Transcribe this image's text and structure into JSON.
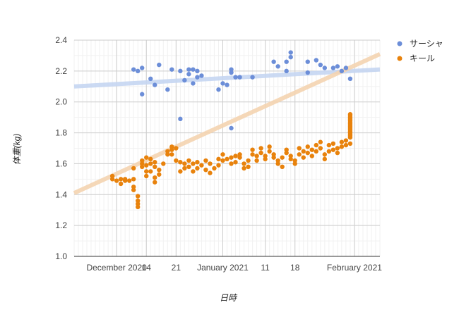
{
  "chart_data": {
    "type": "scatter",
    "xlabel": "日時",
    "ylabel": "体重(kg)",
    "ylim": [
      1.0,
      2.4
    ],
    "yticks": [
      "1.0",
      "1.2",
      "1.4",
      "1.6",
      "1.8",
      "2.0",
      "2.2",
      "2.4"
    ],
    "xlim": [
      "2020-11-27",
      "2021-02-07"
    ],
    "xticks": [
      {
        "date": "2020-12-07",
        "label": "December 2020"
      },
      {
        "date": "2020-12-14",
        "label": "14"
      },
      {
        "date": "2020-12-21",
        "label": "21"
      },
      {
        "date": "2021-01-01",
        "label": "January 2021"
      },
      {
        "date": "2021-01-11",
        "label": "11"
      },
      {
        "date": "2021-01-18",
        "label": "18"
      },
      {
        "date": "2021-02-01",
        "label": "February 2021"
      }
    ],
    "gridlines": true,
    "legend_position": "right",
    "series": [
      {
        "name": "サーシャ",
        "color": "#6c8ed8",
        "trendline": {
          "from": [
            "2020-11-27",
            2.1
          ],
          "to": [
            "2021-02-07",
            2.21
          ],
          "color": "#c6d6f2"
        },
        "points": [
          [
            "2020-12-11",
            2.21
          ],
          [
            "2020-12-12",
            2.2
          ],
          [
            "2020-12-13",
            2.22
          ],
          [
            "2020-12-13",
            2.05
          ],
          [
            "2020-12-15",
            2.15
          ],
          [
            "2020-12-16",
            2.11
          ],
          [
            "2020-12-17",
            2.24
          ],
          [
            "2020-12-19",
            2.08
          ],
          [
            "2020-12-20",
            2.21
          ],
          [
            "2020-12-22",
            2.2
          ],
          [
            "2020-12-22",
            1.89
          ],
          [
            "2020-12-23",
            2.14
          ],
          [
            "2020-12-24",
            2.21
          ],
          [
            "2020-12-24",
            2.18
          ],
          [
            "2020-12-25",
            2.12
          ],
          [
            "2020-12-25",
            2.21
          ],
          [
            "2020-12-26",
            2.16
          ],
          [
            "2020-12-26",
            2.2
          ],
          [
            "2020-12-27",
            2.17
          ],
          [
            "2020-12-31",
            2.08
          ],
          [
            "2021-01-01",
            2.12
          ],
          [
            "2021-01-02",
            2.11
          ],
          [
            "2021-01-03",
            2.21
          ],
          [
            "2021-01-03",
            2.19
          ],
          [
            "2021-01-03",
            1.83
          ],
          [
            "2021-01-04",
            2.16
          ],
          [
            "2021-01-05",
            2.16
          ],
          [
            "2021-01-08",
            2.16
          ],
          [
            "2021-01-13",
            2.26
          ],
          [
            "2021-01-14",
            2.23
          ],
          [
            "2021-01-16",
            2.2
          ],
          [
            "2021-01-16",
            2.26
          ],
          [
            "2021-01-17",
            2.29
          ],
          [
            "2021-01-17",
            2.32
          ],
          [
            "2021-01-21",
            2.19
          ],
          [
            "2021-01-21",
            2.26
          ],
          [
            "2021-01-23",
            2.27
          ],
          [
            "2021-01-24",
            2.24
          ],
          [
            "2021-01-25",
            2.22
          ],
          [
            "2021-01-27",
            2.22
          ],
          [
            "2021-01-28",
            2.23
          ],
          [
            "2021-01-29",
            2.2
          ],
          [
            "2021-01-30",
            2.22
          ],
          [
            "2021-01-31",
            2.15
          ]
        ]
      },
      {
        "name": "キール",
        "color": "#e8820c",
        "trendline": {
          "from": [
            "2020-11-27",
            1.41
          ],
          "to": [
            "2021-02-07",
            2.31
          ],
          "color": "#f5d4b1"
        },
        "points": [
          [
            "2020-12-06",
            1.5
          ],
          [
            "2020-12-06",
            1.52
          ],
          [
            "2020-12-07",
            1.49
          ],
          [
            "2020-12-08",
            1.5
          ],
          [
            "2020-12-08",
            1.47
          ],
          [
            "2020-12-09",
            1.5
          ],
          [
            "2020-12-09",
            1.49
          ],
          [
            "2020-12-10",
            1.49
          ],
          [
            "2020-12-11",
            1.5
          ],
          [
            "2020-12-11",
            1.57
          ],
          [
            "2020-12-11",
            1.45
          ],
          [
            "2020-12-11",
            1.43
          ],
          [
            "2020-12-12",
            1.39
          ],
          [
            "2020-12-12",
            1.36
          ],
          [
            "2020-12-12",
            1.32
          ],
          [
            "2020-12-12",
            1.34
          ],
          [
            "2020-12-13",
            1.6
          ],
          [
            "2020-12-13",
            1.62
          ],
          [
            "2020-12-13",
            1.58
          ],
          [
            "2020-12-14",
            1.64
          ],
          [
            "2020-12-14",
            1.55
          ],
          [
            "2020-12-14",
            1.59
          ],
          [
            "2020-12-14",
            1.52
          ],
          [
            "2020-12-15",
            1.63
          ],
          [
            "2020-12-15",
            1.6
          ],
          [
            "2020-12-15",
            1.55
          ],
          [
            "2020-12-16",
            1.61
          ],
          [
            "2020-12-16",
            1.58
          ],
          [
            "2020-12-16",
            1.51
          ],
          [
            "2020-12-16",
            1.48
          ],
          [
            "2020-12-17",
            1.53
          ],
          [
            "2020-12-17",
            1.56
          ],
          [
            "2020-12-18",
            1.6
          ],
          [
            "2020-12-19",
            1.66
          ],
          [
            "2020-12-19",
            1.68
          ],
          [
            "2020-12-20",
            1.69
          ],
          [
            "2020-12-20",
            1.71
          ],
          [
            "2020-12-20",
            1.66
          ],
          [
            "2020-12-21",
            1.7
          ],
          [
            "2020-12-21",
            1.62
          ],
          [
            "2020-12-22",
            1.61
          ],
          [
            "2020-12-22",
            1.55
          ],
          [
            "2020-12-23",
            1.6
          ],
          [
            "2020-12-23",
            1.57
          ],
          [
            "2020-12-24",
            1.58
          ],
          [
            "2020-12-24",
            1.62
          ],
          [
            "2020-12-25",
            1.6
          ],
          [
            "2020-12-25",
            1.55
          ],
          [
            "2020-12-26",
            1.57
          ],
          [
            "2020-12-26",
            1.61
          ],
          [
            "2020-12-27",
            1.59
          ],
          [
            "2020-12-28",
            1.56
          ],
          [
            "2020-12-28",
            1.62
          ],
          [
            "2020-12-29",
            1.6
          ],
          [
            "2020-12-29",
            1.54
          ],
          [
            "2020-12-30",
            1.57
          ],
          [
            "2020-12-31",
            1.59
          ],
          [
            "2020-12-31",
            1.63
          ],
          [
            "2021-01-01",
            1.66
          ],
          [
            "2021-01-01",
            1.62
          ],
          [
            "2021-01-02",
            1.63
          ],
          [
            "2021-01-03",
            1.6
          ],
          [
            "2021-01-03",
            1.64
          ],
          [
            "2021-01-04",
            1.65
          ],
          [
            "2021-01-04",
            1.61
          ],
          [
            "2021-01-05",
            1.64
          ],
          [
            "2021-01-05",
            1.66
          ],
          [
            "2021-01-06",
            1.6
          ],
          [
            "2021-01-06",
            1.57
          ],
          [
            "2021-01-07",
            1.62
          ],
          [
            "2021-01-07",
            1.58
          ],
          [
            "2021-01-08",
            1.66
          ],
          [
            "2021-01-08",
            1.69
          ],
          [
            "2021-01-09",
            1.65
          ],
          [
            "2021-01-09",
            1.62
          ],
          [
            "2021-01-10",
            1.7
          ],
          [
            "2021-01-10",
            1.67
          ],
          [
            "2021-01-11",
            1.65
          ],
          [
            "2021-01-11",
            1.63
          ],
          [
            "2021-01-12",
            1.68
          ],
          [
            "2021-01-12",
            1.71
          ],
          [
            "2021-01-13",
            1.66
          ],
          [
            "2021-01-13",
            1.64
          ],
          [
            "2021-01-14",
            1.62
          ],
          [
            "2021-01-14",
            1.6
          ],
          [
            "2021-01-15",
            1.64
          ],
          [
            "2021-01-15",
            1.58
          ],
          [
            "2021-01-16",
            1.67
          ],
          [
            "2021-01-16",
            1.69
          ],
          [
            "2021-01-17",
            1.63
          ],
          [
            "2021-01-17",
            1.65
          ],
          [
            "2021-01-18",
            1.62
          ],
          [
            "2021-01-18",
            1.6
          ],
          [
            "2021-01-19",
            1.66
          ],
          [
            "2021-01-19",
            1.7
          ],
          [
            "2021-01-20",
            1.68
          ],
          [
            "2021-01-20",
            1.64
          ],
          [
            "2021-01-21",
            1.71
          ],
          [
            "2021-01-21",
            1.67
          ],
          [
            "2021-01-22",
            1.69
          ],
          [
            "2021-01-22",
            1.65
          ],
          [
            "2021-01-23",
            1.72
          ],
          [
            "2021-01-23",
            1.68
          ],
          [
            "2021-01-24",
            1.74
          ],
          [
            "2021-01-24",
            1.7
          ],
          [
            "2021-01-25",
            1.66
          ],
          [
            "2021-01-25",
            1.63
          ],
          [
            "2021-01-26",
            1.68
          ],
          [
            "2021-01-26",
            1.72
          ],
          [
            "2021-01-27",
            1.73
          ],
          [
            "2021-01-27",
            1.69
          ],
          [
            "2021-01-28",
            1.7
          ],
          [
            "2021-01-28",
            1.67
          ],
          [
            "2021-01-29",
            1.71
          ],
          [
            "2021-01-29",
            1.74
          ],
          [
            "2021-01-30",
            1.72
          ],
          [
            "2021-01-30",
            1.75
          ],
          [
            "2021-01-31",
            1.73
          ],
          [
            "2021-01-31",
            1.77
          ],
          [
            "2021-01-31",
            1.8
          ],
          [
            "2021-01-31",
            1.78
          ],
          [
            "2021-01-31",
            1.82
          ],
          [
            "2021-01-31",
            1.79
          ],
          [
            "2021-01-31",
            1.84
          ],
          [
            "2021-01-31",
            1.81
          ],
          [
            "2021-01-31",
            1.86
          ],
          [
            "2021-01-31",
            1.83
          ],
          [
            "2021-01-31",
            1.88
          ],
          [
            "2021-01-31",
            1.85
          ],
          [
            "2021-01-31",
            1.87
          ],
          [
            "2021-01-31",
            1.9
          ],
          [
            "2021-01-31",
            1.89
          ],
          [
            "2021-01-31",
            1.92
          ],
          [
            "2021-01-31",
            1.91
          ]
        ]
      }
    ]
  }
}
